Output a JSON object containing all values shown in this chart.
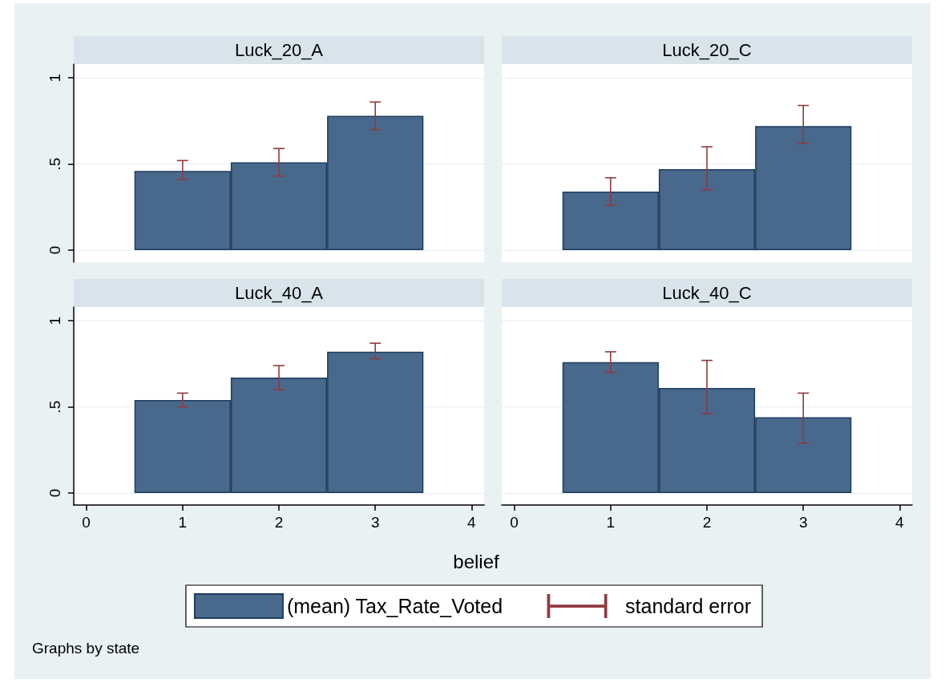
{
  "chart_data": [
    {
      "type": "bar",
      "title": "Luck_20_A",
      "x": [
        1,
        2,
        3
      ],
      "xlim": [
        -0.13,
        4.13
      ],
      "xticks": [
        0,
        1,
        2,
        3,
        4
      ],
      "ylim": [
        -0.07,
        1.08
      ],
      "yticks": [
        0,
        {
          "value": 0.5,
          "label": ".5"
        },
        1
      ],
      "grid": "y",
      "tick_labels": "y",
      "series": [
        {
          "color": "#48698b",
          "values": [
            0.46,
            0.51,
            0.78
          ],
          "errors": [
            [
              0.41,
              0.52
            ],
            [
              0.43,
              0.59
            ],
            [
              0.7,
              0.86
            ]
          ]
        }
      ]
    },
    {
      "type": "bar",
      "title": "Luck_20_C",
      "x": [
        1,
        2,
        3
      ],
      "xlim": [
        -0.13,
        4.13
      ],
      "xticks": [
        0,
        1,
        2,
        3,
        4
      ],
      "ylim": [
        -0.07,
        1.08
      ],
      "yticks": [
        0,
        0.5,
        1
      ],
      "grid": "y",
      "tick_labels": false,
      "series": [
        {
          "color": "#48698b",
          "values": [
            0.34,
            0.47,
            0.72
          ],
          "errors": [
            [
              0.26,
              0.42
            ],
            [
              0.35,
              0.6
            ],
            [
              0.62,
              0.84
            ]
          ]
        }
      ]
    },
    {
      "type": "bar",
      "title": "Luck_40_A",
      "xlabel": "belief",
      "legend": "bottom",
      "annotations": [
        "standard error",
        "Graphs by state"
      ],
      "x": [
        1,
        2,
        3
      ],
      "xlim": [
        -0.13,
        4.13
      ],
      "xticks": [
        0,
        1,
        2,
        3,
        4
      ],
      "ylim": [
        -0.07,
        1.08
      ],
      "yticks": [
        0,
        {
          "value": 0.5,
          "label": ".5"
        },
        1
      ],
      "grid": "y",
      "series": [
        {
          "name": "(mean) Tax_Rate_Voted",
          "color": "#48698b",
          "values": [
            0.54,
            0.67,
            0.82
          ],
          "errors": [
            [
              0.5,
              0.58
            ],
            [
              0.6,
              0.74
            ],
            [
              0.78,
              0.87
            ]
          ]
        }
      ]
    },
    {
      "type": "bar",
      "title": "Luck_40_C",
      "x": [
        1,
        2,
        3
      ],
      "xlim": [
        -0.13,
        4.13
      ],
      "xticks": [
        0,
        1,
        2,
        3,
        4
      ],
      "ylim": [
        -0.07,
        1.08
      ],
      "yticks": [
        0,
        0.5,
        1
      ],
      "grid": "y",
      "tick_labels": "x",
      "series": [
        {
          "color": "#48698b",
          "values": [
            0.76,
            0.61,
            0.44
          ],
          "errors": [
            [
              0.7,
              0.82
            ],
            [
              0.46,
              0.77
            ],
            [
              0.29,
              0.58
            ]
          ]
        }
      ]
    }
  ]
}
